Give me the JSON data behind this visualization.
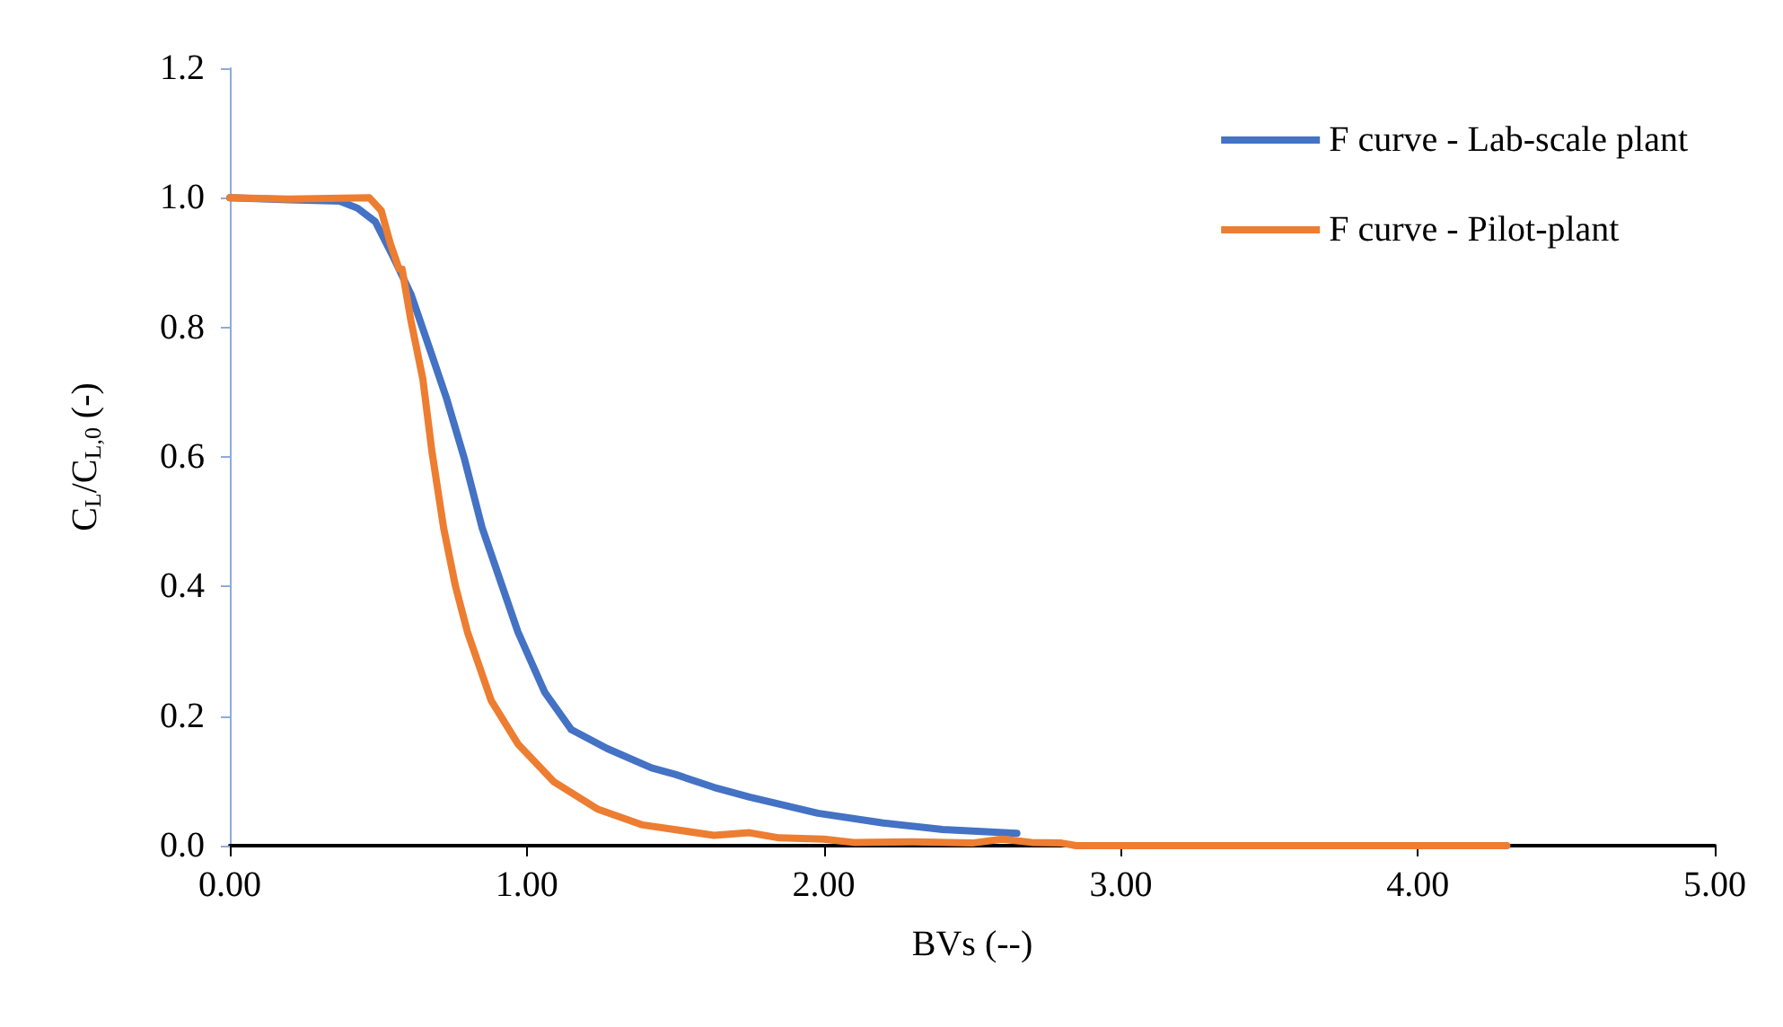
{
  "chart_data": {
    "type": "line",
    "xlabel": "BVs (--)",
    "ylabel": "C$_{L}$/C$_{L,0}$ (-)",
    "xlim": [
      0,
      5
    ],
    "xticks": [
      {
        "value": 0,
        "label": "0.00"
      },
      {
        "value": 1,
        "label": "1.00"
      },
      {
        "value": 2,
        "label": "2.00"
      },
      {
        "value": 3,
        "label": "3.00"
      },
      {
        "value": 4,
        "label": "4.00"
      },
      {
        "value": 5,
        "label": "5.00"
      }
    ],
    "ylim": [
      0,
      1.2
    ],
    "yticks": [
      {
        "value": 0,
        "label": "0.0"
      },
      {
        "value": 0.2,
        "label": "0.2"
      },
      {
        "value": 0.4,
        "label": "0.4"
      },
      {
        "value": 0.6,
        "label": "0.6"
      },
      {
        "value": 0.8,
        "label": "0.8"
      },
      {
        "value": 1,
        "label": "1.0"
      },
      {
        "value": 1.2,
        "label": "1.2"
      }
    ],
    "grid": false,
    "legend": "top right",
    "marker": "none",
    "line_style": "solid",
    "series": [
      {
        "name": "F curve - Lab-scale plant",
        "color": "#4472c4",
        "x": [
          0,
          0.2,
          0.37,
          0.43,
          0.49,
          0.55,
          0.61,
          0.67,
          0.73,
          0.79,
          0.85,
          0.91,
          0.97,
          1.06,
          1.15,
          1.27,
          1.42,
          1.5,
          1.63,
          1.75,
          1.98,
          2.2,
          2.4,
          2.65
        ],
        "values": [
          1,
          0.997,
          0.995,
          0.984,
          0.963,
          0.909,
          0.851,
          0.771,
          0.69,
          0.597,
          0.49,
          0.41,
          0.33,
          0.237,
          0.179,
          0.15,
          0.12,
          0.11,
          0.09,
          0.075,
          0.05,
          0.035,
          0.025,
          0.019
        ]
      },
      {
        "name": "F curve - Pilot-plant",
        "color": "#ed7d31",
        "x": [
          0,
          0.2,
          0.47,
          0.51,
          0.54,
          0.57,
          0.58,
          0.61,
          0.65,
          0.68,
          0.72,
          0.76,
          0.8,
          0.88,
          0.97,
          1.09,
          1.24,
          1.39,
          1.63,
          1.75,
          1.85,
          2.0,
          2.1,
          2.3,
          2.5,
          2.6,
          2.7,
          2.8,
          2.85,
          3.0,
          4.3
        ],
        "values": [
          1,
          0.998,
          1,
          0.98,
          0.93,
          0.89,
          0.89,
          0.81,
          0.72,
          0.61,
          0.49,
          0.4,
          0.33,
          0.224,
          0.157,
          0.099,
          0.056,
          0.032,
          0.016,
          0.02,
          0.012,
          0.01,
          0.005,
          0.006,
          0.004,
          0.01,
          0.005,
          0.004,
          0,
          0,
          0
        ]
      }
    ]
  }
}
